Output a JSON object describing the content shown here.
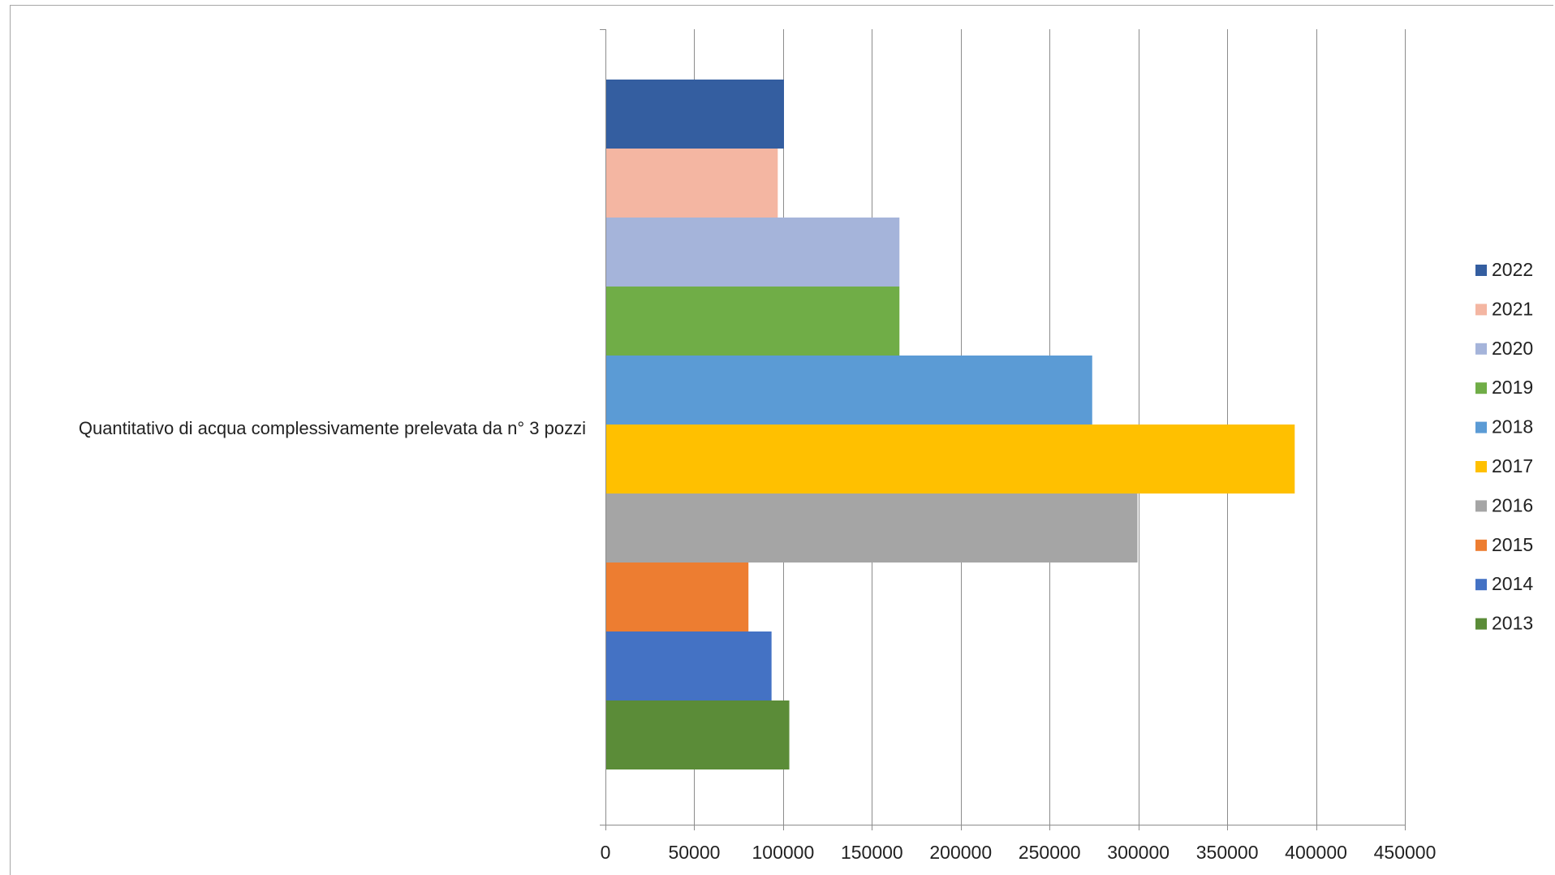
{
  "chart_data": {
    "type": "bar",
    "orientation": "horizontal",
    "title": "",
    "xlabel": "",
    "ylabel": "",
    "categories": [
      "Quantitativo di acqua complessivamente prelevata da n° 3 pozzi"
    ],
    "xlim": [
      0,
      450000
    ],
    "x_ticks": [
      0,
      50000,
      100000,
      150000,
      200000,
      250000,
      300000,
      350000,
      400000,
      450000
    ],
    "x_tick_labels": [
      "0",
      "50000",
      "100000",
      "150000",
      "200000",
      "250000",
      "300000",
      "350000",
      "400000",
      "450000"
    ],
    "grid": "vertical gridlines on",
    "legend_position": "right",
    "series": [
      {
        "name": "2013",
        "color": "#5B8C38",
        "values": [
          103500
        ]
      },
      {
        "name": "2014",
        "color": "#4472C4",
        "values": [
          93500
        ]
      },
      {
        "name": "2015",
        "color": "#ED7D31",
        "values": [
          80500
        ]
      },
      {
        "name": "2016",
        "color": "#A5A5A5",
        "values": [
          299500
        ]
      },
      {
        "name": "2017",
        "color": "#FFC000",
        "values": [
          388000
        ]
      },
      {
        "name": "2018",
        "color": "#5B9BD5",
        "values": [
          274000
        ]
      },
      {
        "name": "2019",
        "color": "#70AD47",
        "values": [
          165500
        ]
      },
      {
        "name": "2020",
        "color": "#A5B4DA",
        "values": [
          165500
        ]
      },
      {
        "name": "2021",
        "color": "#F4B6A2",
        "values": [
          97000
        ]
      },
      {
        "name": "2022",
        "color": "#345EA0",
        "values": [
          100500
        ]
      }
    ]
  }
}
